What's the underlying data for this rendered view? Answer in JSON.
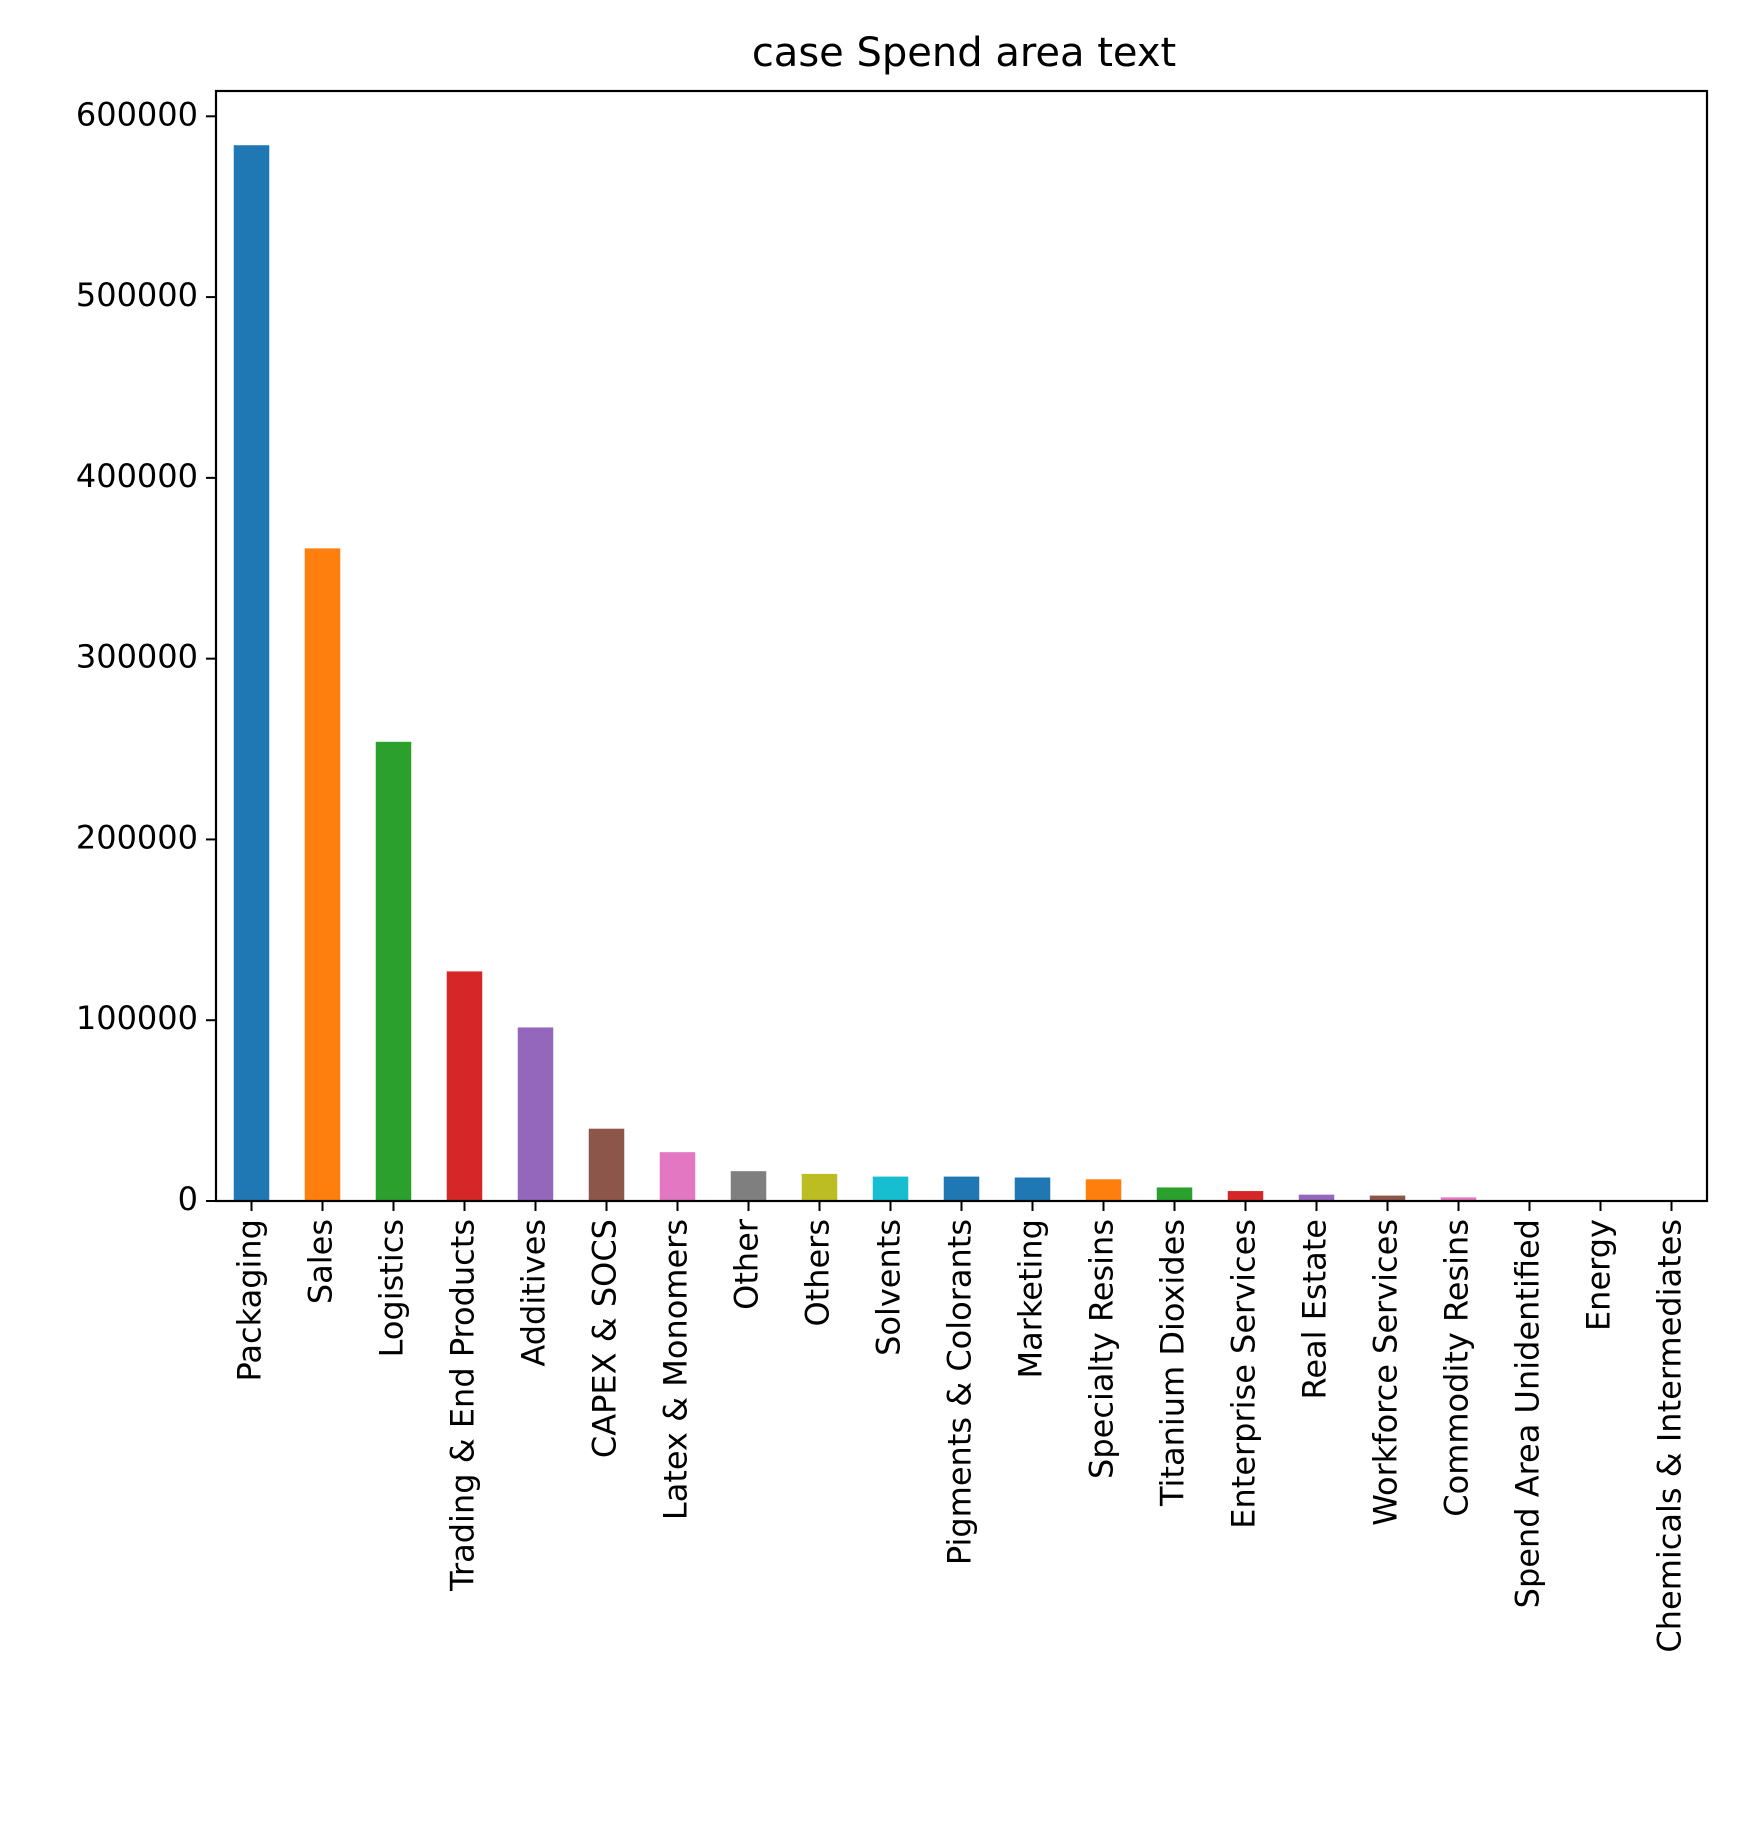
{
  "chart_data": {
    "type": "bar",
    "title": "case Spend area text",
    "xlabel": "",
    "ylabel": "",
    "ylim": [
      0,
      614000
    ],
    "yticks": [
      0,
      100000,
      200000,
      300000,
      400000,
      500000,
      600000
    ],
    "ytick_labels": [
      "0",
      "100000",
      "200000",
      "300000",
      "400000",
      "500000",
      "600000"
    ],
    "grid": false,
    "legend": "none",
    "categories": [
      "Packaging",
      "Sales",
      "Logistics",
      "Trading & End Products",
      "Additives",
      "CAPEX & SOCS",
      "Latex & Monomers",
      "Other",
      "Others",
      "Solvents",
      "Pigments & Colorants",
      "Marketing",
      "Specialty Resins",
      "Titanium Dioxides",
      "Enterprise Services",
      "Real Estate",
      "Workforce Services",
      "Commodity Resins",
      "Spend Area Unidentified",
      "Energy",
      "Chemicals & Intermediates"
    ],
    "values": [
      584000,
      361000,
      254000,
      127000,
      96000,
      40000,
      27000,
      16500,
      15000,
      13500,
      13500,
      13000,
      12000,
      7500,
      5500,
      3500,
      3000,
      2000,
      200,
      100,
      50
    ],
    "colors": [
      "#1f77b4",
      "#ff7f0e",
      "#2ca02c",
      "#d62728",
      "#9467bd",
      "#8c564b",
      "#e377c2",
      "#7f7f7f",
      "#bcbd22",
      "#17becf",
      "#1f77b4",
      "#1f77b4",
      "#ff7f0e",
      "#2ca02c",
      "#d62728",
      "#9467bd",
      "#8c564b",
      "#e377c2",
      "#7f7f7f",
      "#bcbd22",
      "#17becf"
    ]
  }
}
